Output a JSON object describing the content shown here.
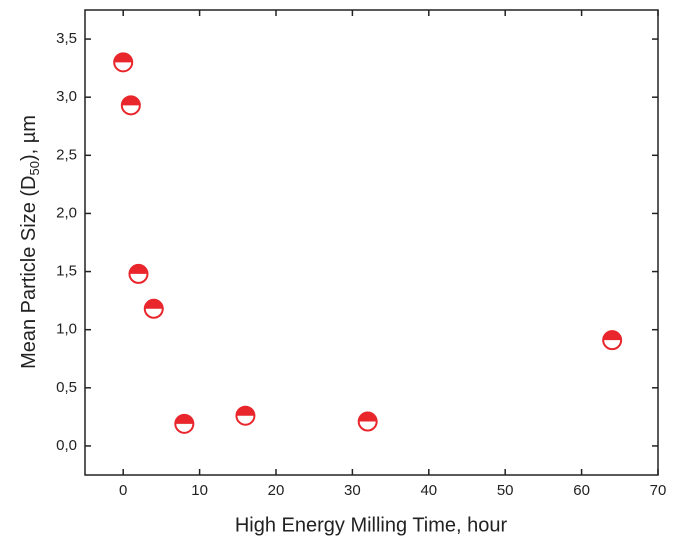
{
  "chart_data": {
    "type": "scatter",
    "x_label": "High Energy Milling Time, hour",
    "y_label": {
      "head": "Mean Particle Size (D",
      "sub": "50",
      "tail": "), µm"
    },
    "x": [
      0,
      1,
      2,
      4,
      8,
      16,
      32,
      64
    ],
    "values": [
      3.3,
      2.93,
      1.48,
      1.18,
      0.19,
      0.26,
      0.21,
      0.91
    ],
    "color": "#e8262b",
    "xlim": [
      -5,
      70
    ],
    "xticks": [
      0,
      10,
      20,
      30,
      40,
      50,
      60,
      70
    ],
    "ylim": [
      -0.25,
      3.75
    ],
    "yticks": [
      {
        "value": 0,
        "label": "0,0"
      },
      {
        "value": 0.5,
        "label": "0,5"
      },
      {
        "value": 1,
        "label": "1,0"
      },
      {
        "value": 1.5,
        "label": "1,5"
      },
      {
        "value": 2,
        "label": "2,0"
      },
      {
        "value": 2.5,
        "label": "2,5"
      },
      {
        "value": 3,
        "label": "3,0"
      },
      {
        "value": 3.5,
        "label": "3,5"
      }
    ]
  }
}
